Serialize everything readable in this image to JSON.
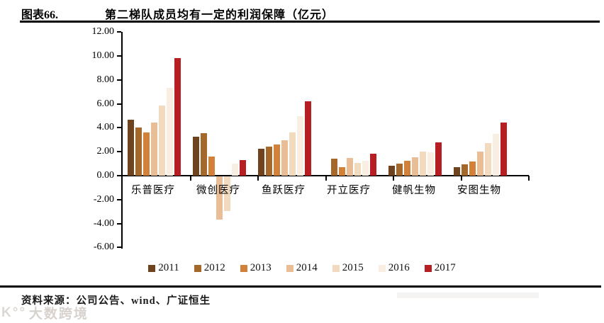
{
  "header": {
    "figure_label": "图表66.",
    "title": "第二梯队成员均有一定的利润保障（亿元）"
  },
  "source": {
    "label": "资料来源：公司公告、wind、广证恒生"
  },
  "watermark": {
    "logo": "K°°",
    "text": "大数跨境"
  },
  "chart_data": {
    "type": "bar",
    "title": "第二梯队成员均有一定的利润保障（亿元）",
    "unit": "亿元",
    "categories": [
      "乐普医疗",
      "微创医疗",
      "鱼跃医疗",
      "开立医疗",
      "健帆生物",
      "安图生物"
    ],
    "series": [
      {
        "name": "2011",
        "color": "#6E431E",
        "values": [
          4.65,
          3.25,
          2.25,
          null,
          0.8,
          0.7
        ]
      },
      {
        "name": "2012",
        "color": "#A4682B",
        "values": [
          4.0,
          3.55,
          2.4,
          1.4,
          1.0,
          0.95
        ]
      },
      {
        "name": "2013",
        "color": "#D28238",
        "values": [
          3.6,
          1.6,
          2.6,
          0.7,
          1.25,
          1.2
        ]
      },
      {
        "name": "2014",
        "color": "#E9BE96",
        "values": [
          4.45,
          -3.6,
          2.95,
          1.45,
          1.55,
          2.0
        ]
      },
      {
        "name": "2015",
        "color": "#F1DABE",
        "values": [
          5.85,
          -2.9,
          3.6,
          1.05,
          2.0,
          2.7
        ]
      },
      {
        "name": "2016",
        "color": "#F8EEE2",
        "values": [
          7.35,
          1.0,
          4.95,
          1.25,
          1.95,
          3.5
        ]
      },
      {
        "name": "2017",
        "color": "#B71E24",
        "values": [
          9.85,
          1.3,
          6.2,
          1.85,
          2.8,
          4.45
        ]
      }
    ],
    "ylim": [
      -6,
      12
    ],
    "ytick_step": 2,
    "ytick_labels": [
      "12.00",
      "10.00",
      "8.00",
      "6.00",
      "4.00",
      "2.00",
      "0.00",
      "-2.00",
      "-4.00",
      "-6.00"
    ],
    "grid": false,
    "legend_position": "bottom",
    "axis_color": "#000000"
  }
}
